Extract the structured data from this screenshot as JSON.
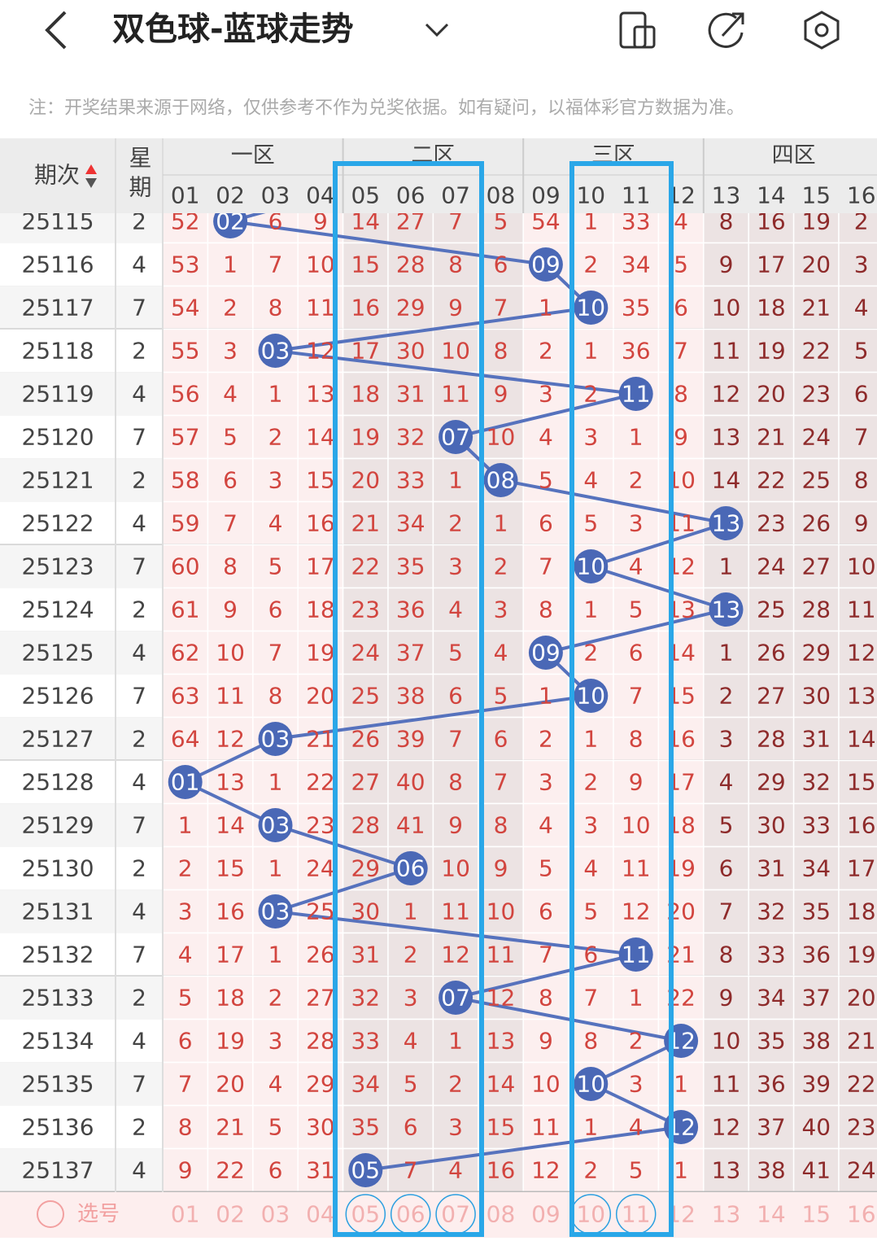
{
  "header": {
    "title": "双色球-蓝球走势"
  },
  "note": "注：开奖结果来源于网络，仅供参考不作为兑奖依据。如有疑问，以福体彩官方数据为准。",
  "table": {
    "period_header": "期次",
    "week_header": "星期",
    "zones": [
      "一区",
      "二区",
      "三区",
      "四区"
    ],
    "numbers": [
      "01",
      "02",
      "03",
      "04",
      "05",
      "06",
      "07",
      "08",
      "09",
      "10",
      "11",
      "12",
      "13",
      "14",
      "15",
      "16"
    ],
    "rows": [
      {
        "period": 25115,
        "week": 2,
        "cells": [
          52,
          "02",
          6,
          9,
          14,
          27,
          7,
          5,
          54,
          1,
          33,
          4,
          8,
          16,
          19,
          2
        ]
      },
      {
        "period": 25116,
        "week": 4,
        "cells": [
          53,
          1,
          7,
          10,
          15,
          28,
          8,
          6,
          "09",
          2,
          34,
          5,
          9,
          17,
          20,
          3
        ]
      },
      {
        "period": 25117,
        "week": 7,
        "cells": [
          54,
          2,
          8,
          11,
          16,
          29,
          9,
          7,
          1,
          "10",
          35,
          6,
          10,
          18,
          21,
          4
        ]
      },
      {
        "period": 25118,
        "week": 2,
        "cells": [
          55,
          3,
          "03",
          12,
          17,
          30,
          10,
          8,
          2,
          1,
          36,
          7,
          11,
          19,
          22,
          5
        ]
      },
      {
        "period": 25119,
        "week": 4,
        "cells": [
          56,
          4,
          1,
          13,
          18,
          31,
          11,
          9,
          3,
          2,
          "11",
          8,
          12,
          20,
          23,
          6
        ]
      },
      {
        "period": 25120,
        "week": 7,
        "cells": [
          57,
          5,
          2,
          14,
          19,
          32,
          "07",
          10,
          4,
          3,
          1,
          9,
          13,
          21,
          24,
          7
        ]
      },
      {
        "period": 25121,
        "week": 2,
        "cells": [
          58,
          6,
          3,
          15,
          20,
          33,
          1,
          "08",
          5,
          4,
          2,
          10,
          14,
          22,
          25,
          8
        ]
      },
      {
        "period": 25122,
        "week": 4,
        "cells": [
          59,
          7,
          4,
          16,
          21,
          34,
          2,
          1,
          6,
          5,
          3,
          11,
          "13",
          23,
          26,
          9
        ]
      },
      {
        "period": 25123,
        "week": 7,
        "cells": [
          60,
          8,
          5,
          17,
          22,
          35,
          3,
          2,
          7,
          "10",
          4,
          12,
          1,
          24,
          27,
          10
        ]
      },
      {
        "period": 25124,
        "week": 2,
        "cells": [
          61,
          9,
          6,
          18,
          23,
          36,
          4,
          3,
          8,
          1,
          5,
          13,
          "13",
          25,
          28,
          11
        ]
      },
      {
        "period": 25125,
        "week": 4,
        "cells": [
          62,
          10,
          7,
          19,
          24,
          37,
          5,
          4,
          "09",
          2,
          6,
          14,
          1,
          26,
          29,
          12
        ]
      },
      {
        "period": 25126,
        "week": 7,
        "cells": [
          63,
          11,
          8,
          20,
          25,
          38,
          6,
          5,
          1,
          "10",
          7,
          15,
          2,
          27,
          30,
          13
        ]
      },
      {
        "period": 25127,
        "week": 2,
        "cells": [
          64,
          12,
          "03",
          21,
          26,
          39,
          7,
          6,
          2,
          1,
          8,
          16,
          3,
          28,
          31,
          14
        ]
      },
      {
        "period": 25128,
        "week": 4,
        "cells": [
          "01",
          13,
          1,
          22,
          27,
          40,
          8,
          7,
          3,
          2,
          9,
          17,
          4,
          29,
          32,
          15
        ]
      },
      {
        "period": 25129,
        "week": 7,
        "cells": [
          1,
          14,
          "03",
          23,
          28,
          41,
          9,
          8,
          4,
          3,
          10,
          18,
          5,
          30,
          33,
          16
        ]
      },
      {
        "period": 25130,
        "week": 2,
        "cells": [
          2,
          15,
          1,
          24,
          29,
          "06",
          10,
          9,
          5,
          4,
          11,
          19,
          6,
          31,
          34,
          17
        ]
      },
      {
        "period": 25131,
        "week": 4,
        "cells": [
          3,
          16,
          "03",
          25,
          30,
          1,
          11,
          10,
          6,
          5,
          12,
          20,
          7,
          32,
          35,
          18
        ]
      },
      {
        "period": 25132,
        "week": 7,
        "cells": [
          4,
          17,
          1,
          26,
          31,
          2,
          12,
          11,
          7,
          6,
          "11",
          21,
          8,
          33,
          36,
          19
        ]
      },
      {
        "period": 25133,
        "week": 2,
        "cells": [
          5,
          18,
          2,
          27,
          32,
          3,
          "07",
          12,
          8,
          7,
          1,
          22,
          9,
          34,
          37,
          20
        ]
      },
      {
        "period": 25134,
        "week": 4,
        "cells": [
          6,
          19,
          3,
          28,
          33,
          4,
          1,
          13,
          9,
          8,
          2,
          "12",
          10,
          35,
          38,
          21
        ]
      },
      {
        "period": 25135,
        "week": 7,
        "cells": [
          7,
          20,
          4,
          29,
          34,
          5,
          2,
          14,
          10,
          "10",
          3,
          1,
          11,
          36,
          39,
          22
        ]
      },
      {
        "period": 25136,
        "week": 2,
        "cells": [
          8,
          21,
          5,
          30,
          35,
          6,
          3,
          15,
          11,
          1,
          4,
          "12",
          12,
          37,
          40,
          23
        ]
      },
      {
        "period": 25137,
        "week": 4,
        "cells": [
          9,
          22,
          6,
          31,
          "05",
          7,
          4,
          16,
          12,
          2,
          5,
          1,
          13,
          38,
          41,
          24
        ]
      }
    ]
  },
  "footer": {
    "label": "选号",
    "selected": [
      false,
      false,
      false,
      false,
      true,
      true,
      true,
      false,
      false,
      true,
      true,
      false,
      false,
      false,
      false,
      false
    ]
  }
}
